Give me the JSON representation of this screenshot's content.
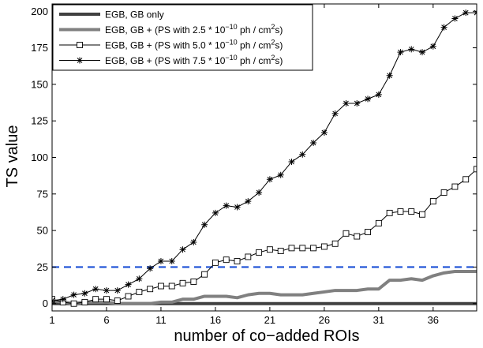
{
  "chart_data": {
    "type": "line",
    "xlabel": "number of co−added ROIs",
    "ylabel": "TS value",
    "xlim": [
      1,
      40
    ],
    "ylim": [
      -5,
      205
    ],
    "xticks": [
      1,
      6,
      11,
      16,
      21,
      26,
      31,
      36
    ],
    "yticks": [
      0,
      25,
      50,
      75,
      100,
      125,
      150,
      175,
      200
    ],
    "legend_position": "top-left",
    "x": [
      1,
      2,
      3,
      4,
      5,
      6,
      7,
      8,
      9,
      10,
      11,
      12,
      13,
      14,
      15,
      16,
      17,
      18,
      19,
      20,
      21,
      22,
      23,
      24,
      25,
      26,
      27,
      28,
      29,
      30,
      31,
      32,
      33,
      34,
      35,
      36,
      37,
      38,
      39,
      40
    ],
    "series": [
      {
        "name": "EGB, GB only",
        "style": "thick-dark",
        "color": "#404040",
        "values": [
          0,
          0,
          0,
          0,
          0,
          0,
          0,
          0,
          0,
          0,
          0,
          0,
          0,
          0,
          0,
          0,
          0,
          0,
          0,
          0,
          0,
          0,
          0,
          0,
          0,
          0,
          0,
          0,
          0,
          0,
          0,
          0,
          0,
          0,
          0,
          0,
          0,
          0,
          0,
          0
        ]
      },
      {
        "name": "EGB, GB + (PS with 2.5 * 10",
        "name_exp": "−10",
        "name_suffix": " ph / cm",
        "name_exp2": "2",
        "name_end": "s)",
        "style": "thick-gray",
        "color": "#808080",
        "values": [
          2,
          1,
          0,
          1,
          1,
          1,
          0,
          0,
          0,
          0,
          1,
          1,
          3,
          3,
          5,
          5,
          5,
          4,
          6,
          7,
          7,
          6,
          6,
          6,
          7,
          8,
          9,
          9,
          9,
          10,
          10,
          16,
          16,
          17,
          16,
          19,
          21,
          22,
          22,
          22
        ]
      },
      {
        "name": "EGB, GB + (PS with 5.0 * 10",
        "name_exp": "−10",
        "name_suffix": " ph / cm",
        "name_exp2": "2",
        "name_end": "s)",
        "style": "square",
        "color": "#000000",
        "values": [
          3,
          1,
          0,
          1,
          3,
          3,
          2,
          5,
          8,
          10,
          12,
          12,
          14,
          15,
          20,
          28,
          30,
          29,
          32,
          35,
          37,
          36,
          38,
          38,
          38,
          39,
          41,
          48,
          46,
          49,
          55,
          62,
          63,
          63,
          61,
          70,
          76,
          80,
          85,
          92
        ]
      },
      {
        "name": "EGB, GB + (PS with 7.5 * 10",
        "name_exp": "−10",
        "name_suffix": " ph / cm",
        "name_exp2": "2",
        "name_end": "s)",
        "style": "star",
        "color": "#000000",
        "values": [
          2,
          3,
          6,
          7,
          10,
          9,
          9,
          13,
          17,
          24,
          29,
          29,
          37,
          42,
          54,
          62,
          67,
          66,
          70,
          76,
          85,
          88,
          97,
          102,
          110,
          117,
          130,
          137,
          137,
          140,
          143,
          156,
          172,
          174,
          172,
          176,
          189,
          195,
          199,
          199
        ]
      }
    ],
    "reference_line": {
      "y": 25,
      "color": "#1a4fd6",
      "style": "dashed"
    }
  }
}
